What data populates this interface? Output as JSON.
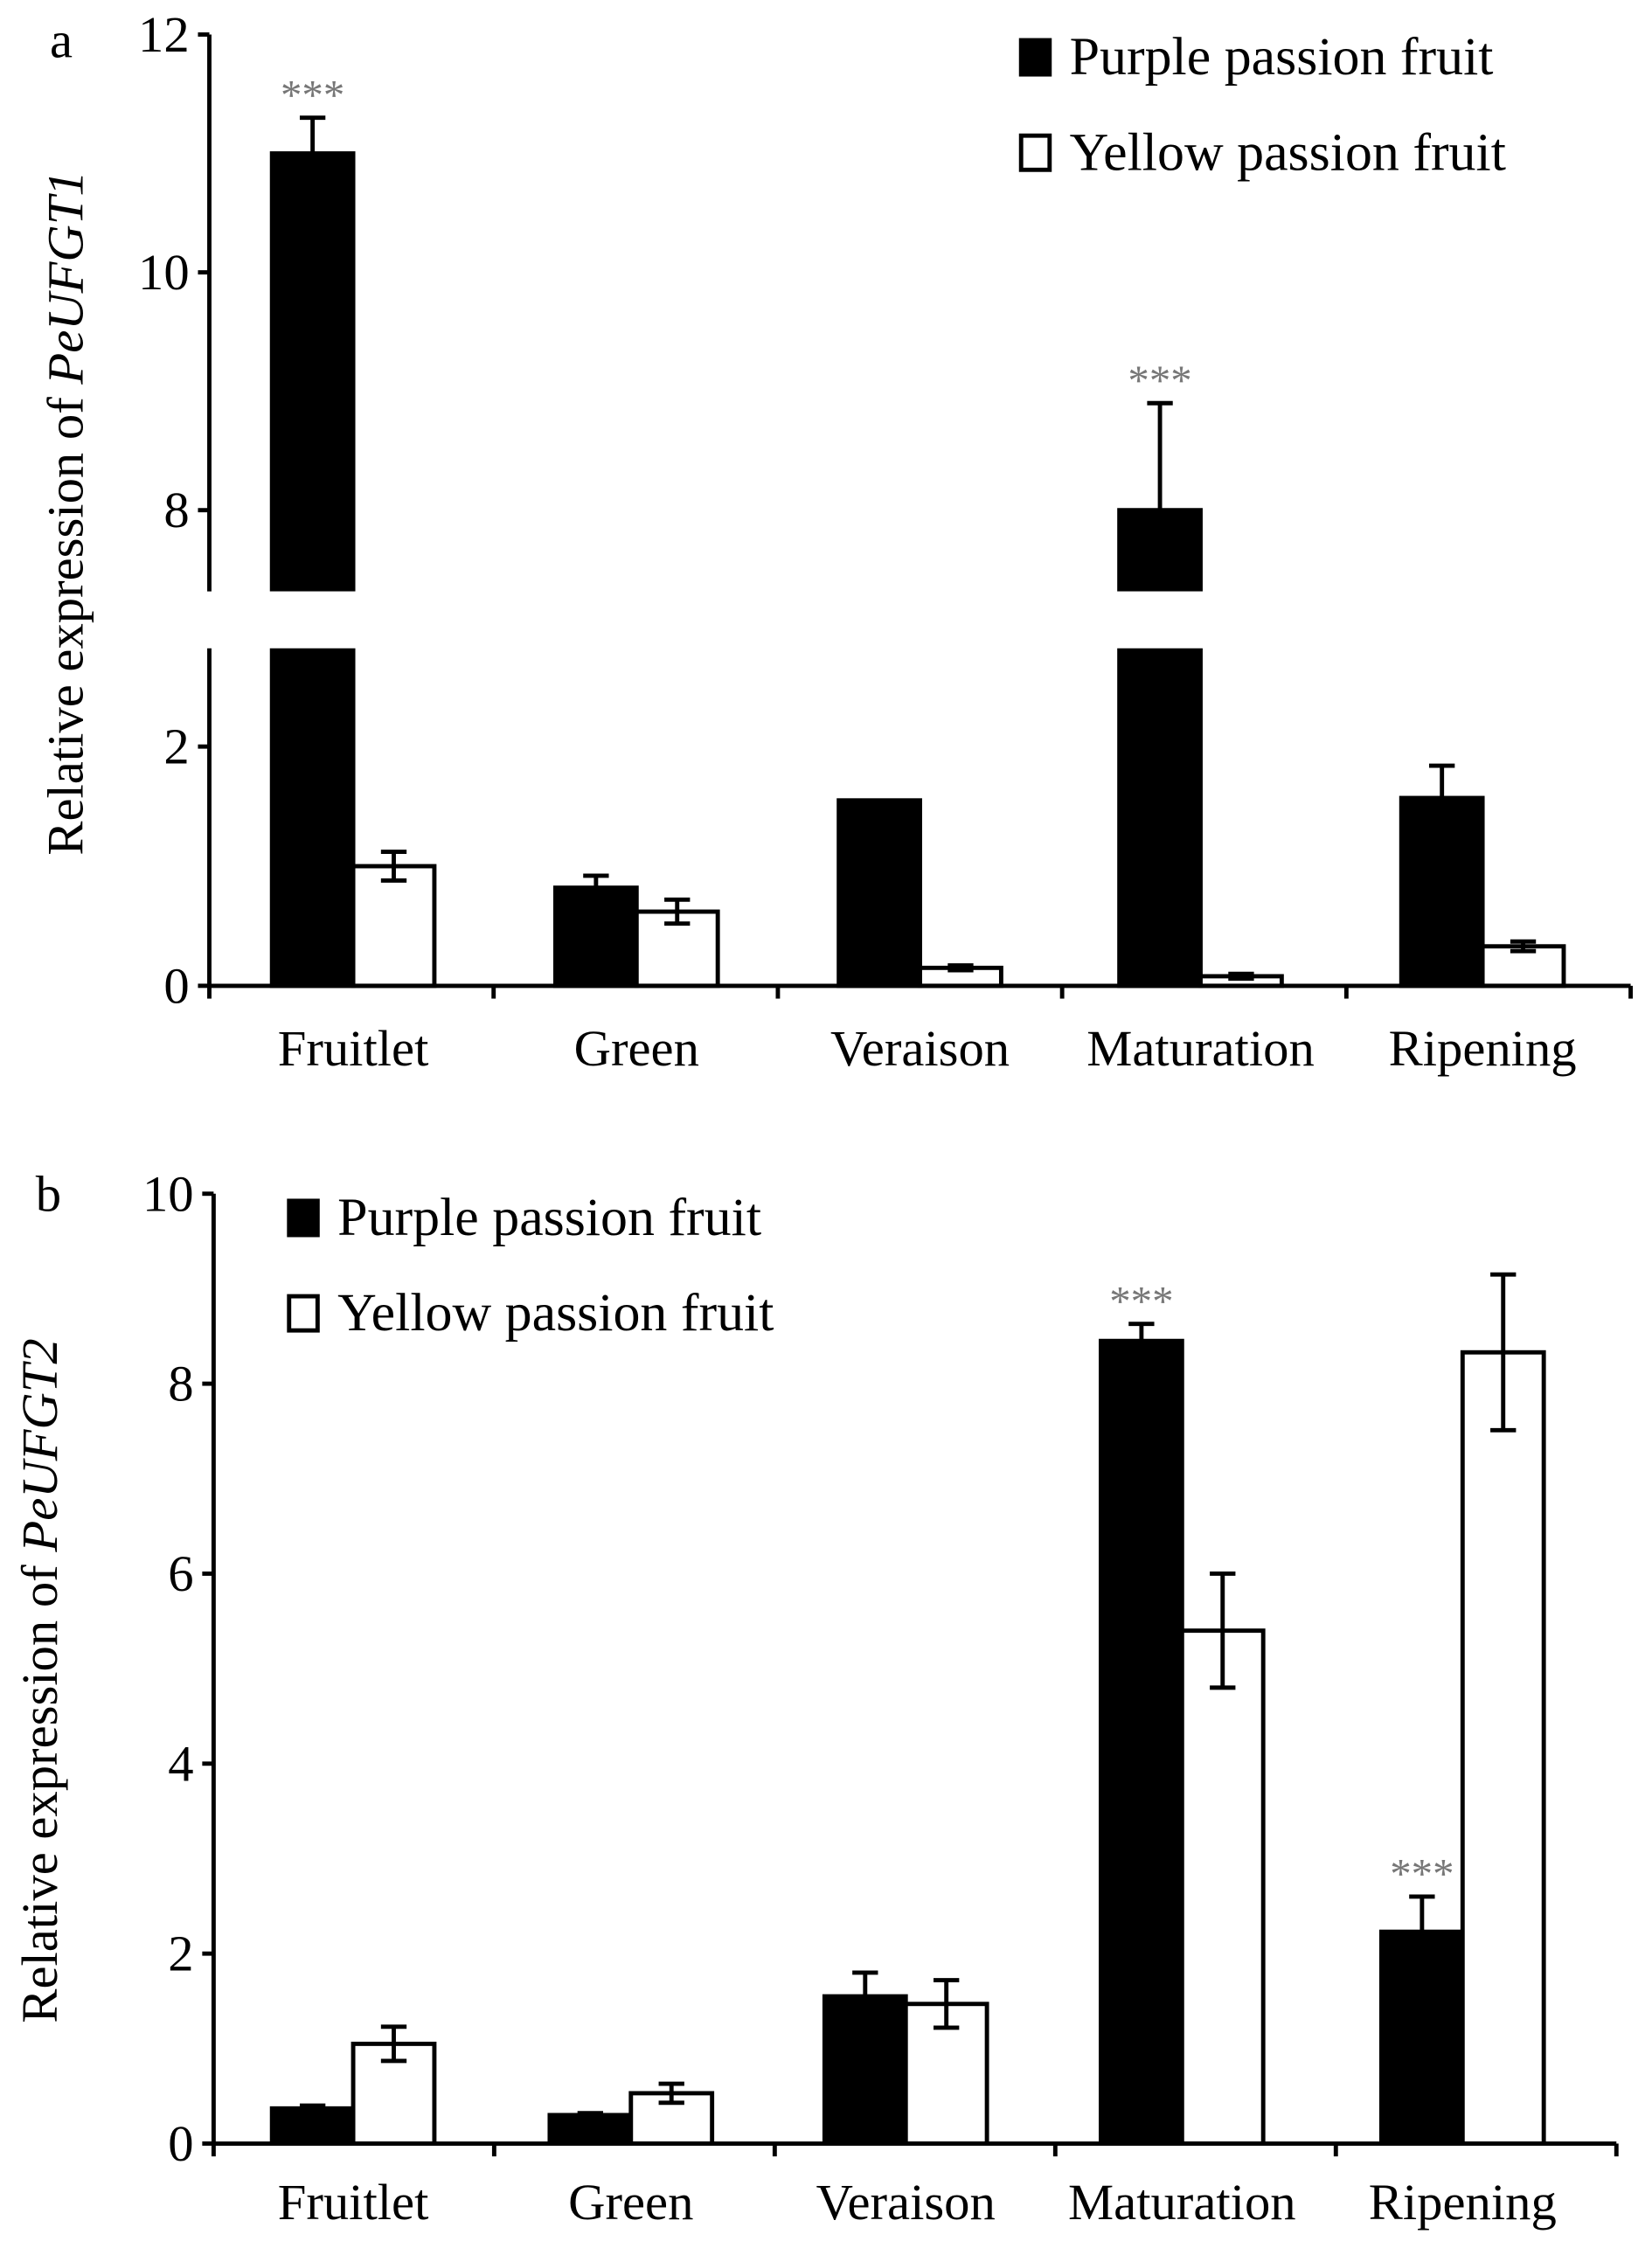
{
  "chart_data": [
    {
      "panel_label": "a",
      "type": "bar",
      "ylabel_prefix": "Relative expression of ",
      "ylabel_gene": "PeUFGT1",
      "categories": [
        "Fruitlet",
        "Green",
        "Veraison",
        "Maturation",
        "Ripening"
      ],
      "yticks": [
        "0",
        "2",
        "8",
        "10",
        "12"
      ],
      "axis_break": [
        2.8,
        7.3
      ],
      "ylim": [
        0,
        12
      ],
      "legend_position": "top-right",
      "series": [
        {
          "name": "Purple passion fruit",
          "color": "#000000",
          "values": [
            11.0,
            0.82,
            1.55,
            8.0,
            1.57
          ],
          "errors": [
            0.3,
            0.1,
            0,
            0.9,
            0.27
          ],
          "significance": [
            "***",
            "",
            "",
            "***",
            ""
          ]
        },
        {
          "name": "Yellow passion fruit",
          "color": "#ffffff",
          "values": [
            1.0,
            0.62,
            0.15,
            0.08,
            0.33
          ],
          "errors": [
            0.12,
            0.1,
            0.02,
            0.02,
            0.04
          ],
          "significance": [
            "",
            "",
            "",
            "",
            ""
          ]
        }
      ]
    },
    {
      "panel_label": "b",
      "type": "bar",
      "ylabel_prefix": "Relative expression of ",
      "ylabel_gene": "PeUFGT2",
      "categories": [
        "Fruitlet",
        "Green",
        "Veraison",
        "Maturation",
        "Ripening"
      ],
      "yticks": [
        "0",
        "2",
        "4",
        "6",
        "8",
        "10"
      ],
      "ylim": [
        0,
        10
      ],
      "legend_position": "top-left",
      "series": [
        {
          "name": "Purple passion fruit",
          "color": "#000000",
          "values": [
            0.37,
            0.3,
            1.55,
            8.45,
            2.23
          ],
          "errors": [
            0.03,
            0.02,
            0.25,
            0.18,
            0.37
          ],
          "significance": [
            "",
            "",
            "",
            "***",
            "***"
          ]
        },
        {
          "name": "Yellow passion fruit",
          "color": "#ffffff",
          "values": [
            1.05,
            0.53,
            1.47,
            5.4,
            8.33
          ],
          "errors": [
            0.18,
            0.1,
            0.25,
            0.6,
            0.82
          ],
          "significance": [
            "",
            "",
            "",
            "",
            ""
          ]
        }
      ]
    }
  ]
}
